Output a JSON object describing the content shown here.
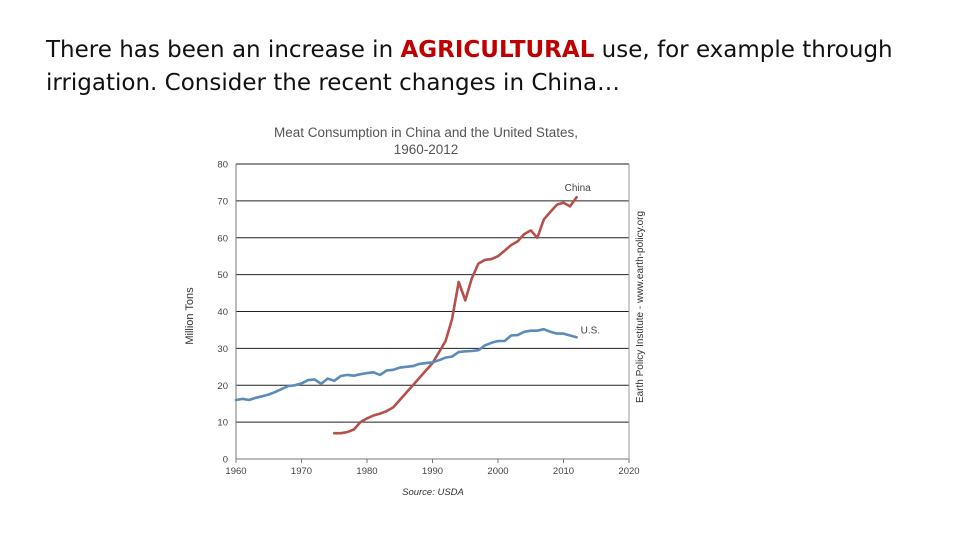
{
  "slide": {
    "text_before": "There has been an increase in ",
    "highlight": "AGRICULTURAL",
    "text_after": " use, for example through irrigation. Consider the recent changes in China…",
    "highlight_color": "#c00000"
  },
  "chart_data": {
    "type": "line",
    "title_line1": "Meat Consumption in China and the United States,",
    "title_line2": "1960-2012",
    "ylabel": "Million Tons",
    "source": "Source: USDA",
    "credit": "Earth Policy Institute - www.earth-policy.org",
    "xlim": [
      1960,
      2020
    ],
    "ylim": [
      0,
      80
    ],
    "xticks": [
      1960,
      1970,
      1980,
      1990,
      2000,
      2010,
      2020
    ],
    "yticks": [
      0,
      10,
      20,
      30,
      40,
      50,
      60,
      70,
      80
    ],
    "grid": "horizontal",
    "series": [
      {
        "name": "China",
        "color": "#b5504b",
        "x": [
          1975,
          1976,
          1977,
          1978,
          1979,
          1980,
          1981,
          1982,
          1983,
          1984,
          1985,
          1986,
          1987,
          1988,
          1989,
          1990,
          1991,
          1992,
          1993,
          1994,
          1995,
          1996,
          1997,
          1998,
          1999,
          2000,
          2001,
          2002,
          2003,
          2004,
          2005,
          2006,
          2007,
          2008,
          2009,
          2010,
          2011,
          2012
        ],
        "values": [
          7,
          7,
          7.3,
          8,
          10,
          11,
          11.8,
          12.3,
          13,
          14,
          16,
          18,
          20,
          22,
          24,
          26,
          29,
          32,
          38,
          48,
          43,
          49,
          53,
          54,
          54.2,
          55,
          56.5,
          58,
          59,
          61,
          62,
          60,
          65,
          67,
          69,
          69.5,
          68.5,
          71
        ]
      },
      {
        "name": "U.S.",
        "color": "#5b8bb8",
        "x": [
          1960,
          1961,
          1962,
          1963,
          1964,
          1965,
          1966,
          1967,
          1968,
          1969,
          1970,
          1971,
          1972,
          1973,
          1974,
          1975,
          1976,
          1977,
          1978,
          1979,
          1980,
          1981,
          1982,
          1983,
          1984,
          1985,
          1986,
          1987,
          1988,
          1989,
          1990,
          1991,
          1992,
          1993,
          1994,
          1995,
          1996,
          1997,
          1998,
          1999,
          2000,
          2001,
          2002,
          2003,
          2004,
          2005,
          2006,
          2007,
          2008,
          2009,
          2010,
          2011,
          2012
        ],
        "values": [
          16,
          16.3,
          16,
          16.6,
          17,
          17.5,
          18.2,
          19,
          19.8,
          20,
          20.5,
          21.4,
          21.6,
          20.4,
          21.8,
          21.2,
          22.5,
          22.8,
          22.6,
          23,
          23.3,
          23.5,
          22.8,
          24,
          24.2,
          24.8,
          25,
          25.2,
          25.8,
          26,
          26.2,
          26.8,
          27.5,
          27.8,
          29,
          29.2,
          29.3,
          29.5,
          30.8,
          31.5,
          32,
          32,
          33.5,
          33.6,
          34.5,
          34.8,
          34.8,
          35.2,
          34.5,
          34,
          34,
          33.5,
          33
        ]
      }
    ]
  }
}
